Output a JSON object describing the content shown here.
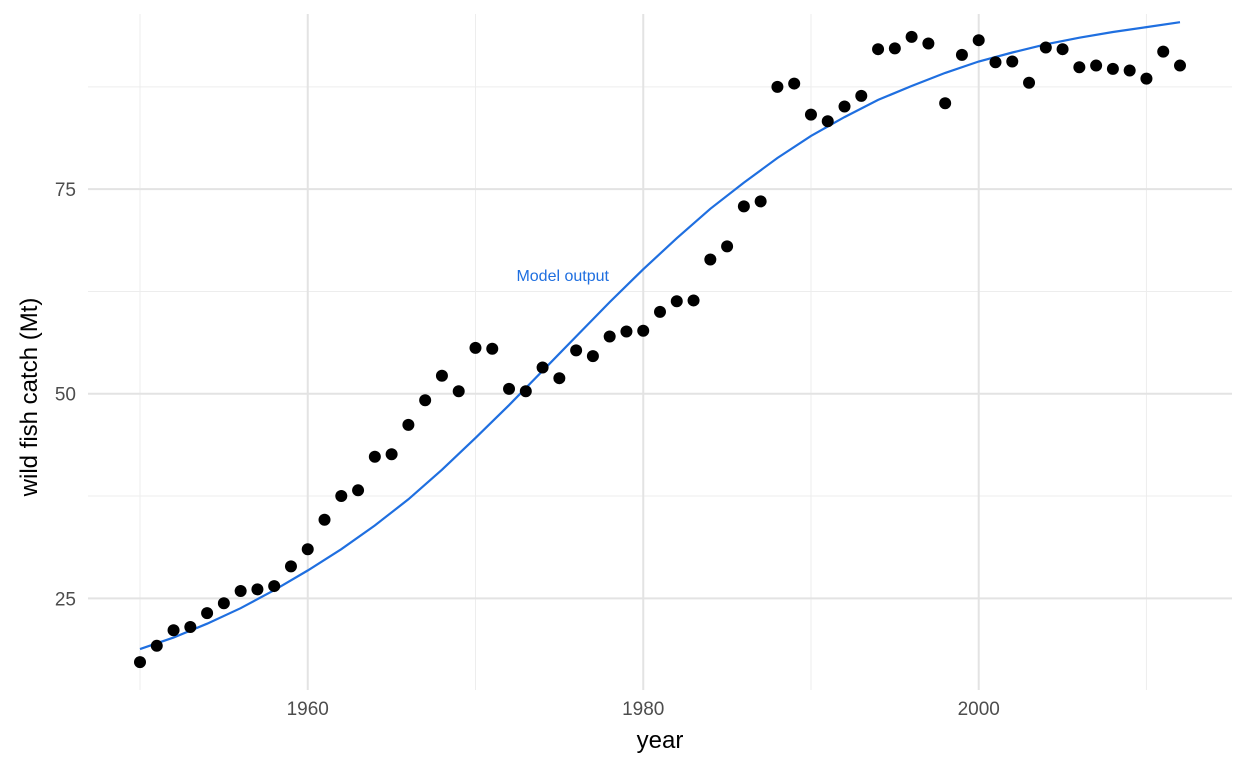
{
  "chart_data": {
    "type": "scatter",
    "title": "",
    "xlabel": "year",
    "ylabel": "wild fish catch (Mt)",
    "xlim": [
      1946.9,
      2015.1
    ],
    "ylim": [
      13.8,
      96.4
    ],
    "x_ticks": [
      1960,
      1980,
      2000
    ],
    "x_tick_labels": [
      "1960",
      "1980",
      "2000"
    ],
    "x_minor_ticks": [
      1950,
      1970,
      1990,
      2010
    ],
    "y_ticks": [
      25,
      50,
      75
    ],
    "y_tick_labels": [
      "25",
      "50",
      "75"
    ],
    "y_minor_ticks": [
      37.5,
      62.5,
      87.5
    ],
    "grid": true,
    "legend": "none",
    "series": [
      {
        "type": "scatter",
        "color": "#000000",
        "x": [
          1950,
          1951,
          1952,
          1953,
          1954,
          1955,
          1956,
          1957,
          1958,
          1959,
          1960,
          1961,
          1962,
          1963,
          1964,
          1965,
          1966,
          1967,
          1968,
          1969,
          1970,
          1971,
          1972,
          1973,
          1974,
          1975,
          1976,
          1977,
          1978,
          1979,
          1980,
          1981,
          1982,
          1983,
          1984,
          1985,
          1986,
          1987,
          1988,
          1989,
          1990,
          1991,
          1992,
          1993,
          1994,
          1995,
          1996,
          1997,
          1998,
          1999,
          2000,
          2001,
          2002,
          2003,
          2004,
          2005,
          2006,
          2007,
          2008,
          2009,
          2010,
          2011,
          2012
        ],
        "y": [
          17.2,
          19.2,
          21.1,
          21.5,
          23.2,
          24.4,
          25.9,
          26.1,
          26.5,
          28.9,
          31.0,
          34.6,
          37.5,
          38.2,
          42.3,
          42.6,
          46.2,
          49.2,
          52.2,
          50.3,
          55.6,
          55.5,
          50.6,
          50.3,
          53.2,
          51.9,
          55.3,
          54.6,
          57.0,
          57.6,
          57.7,
          60.0,
          61.3,
          61.4,
          66.4,
          68.0,
          72.9,
          73.5,
          87.5,
          87.9,
          84.1,
          83.3,
          85.1,
          86.4,
          92.1,
          92.2,
          93.6,
          92.8,
          85.5,
          91.4,
          93.2,
          90.5,
          90.6,
          88.0,
          92.3,
          92.1,
          89.9,
          90.1,
          89.7,
          89.5,
          88.5,
          91.8,
          90.1
        ]
      },
      {
        "type": "line",
        "color": "#1f6fe0",
        "label": "Model output",
        "label_x": 1975.2,
        "label_y": 63.8,
        "x": [
          1950,
          1952,
          1954,
          1956,
          1958,
          1960,
          1962,
          1964,
          1966,
          1968,
          1970,
          1972,
          1974,
          1976,
          1978,
          1980,
          1982,
          1984,
          1986,
          1988,
          1990,
          1992,
          1994,
          1996,
          1998,
          2000,
          2002,
          2004,
          2006,
          2008,
          2010,
          2012
        ],
        "y": [
          18.8,
          20.2,
          21.9,
          23.8,
          26.0,
          28.4,
          31.0,
          33.9,
          37.1,
          40.7,
          44.6,
          48.6,
          52.8,
          57.0,
          61.2,
          65.2,
          69.0,
          72.6,
          75.8,
          78.8,
          81.5,
          83.8,
          85.9,
          87.6,
          89.2,
          90.6,
          91.7,
          92.7,
          93.5,
          94.2,
          94.8,
          95.4
        ]
      }
    ]
  }
}
